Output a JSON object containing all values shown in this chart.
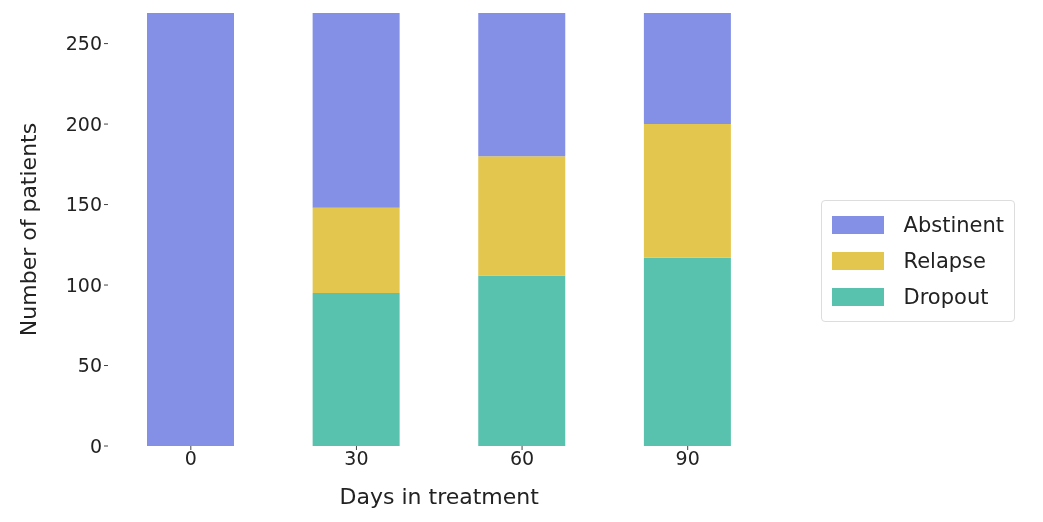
{
  "chart_data": {
    "type": "bar",
    "stacked": true,
    "xlabel": "Days in treatment",
    "ylabel": "Number of patients",
    "categories": [
      "0",
      "30",
      "60",
      "90"
    ],
    "series": [
      {
        "name": "Dropout",
        "color": "#59c2ae",
        "values": [
          0,
          95,
          106,
          117
        ]
      },
      {
        "name": "Relapse",
        "color": "#e3c64d",
        "values": [
          0,
          53,
          74,
          83
        ]
      },
      {
        "name": "Abstinent",
        "color": "#8390e6",
        "values": [
          269,
          121,
          89,
          69
        ]
      }
    ],
    "ylim": [
      0,
      269
    ],
    "yticks": [
      0,
      50,
      100,
      150,
      200,
      250
    ],
    "grid": false,
    "legend": "right"
  }
}
